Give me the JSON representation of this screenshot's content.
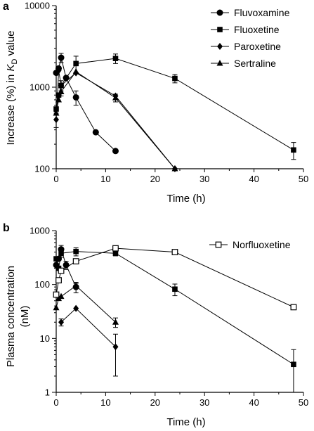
{
  "chart_data": [
    {
      "type": "line",
      "panel_label": "a",
      "title": "",
      "xlabel": "Time (h)",
      "ylabel_prefix": "Increase (%) in ",
      "ylabel_var": "K",
      "ylabel_sub": "D",
      "ylabel_suffix": " value",
      "xlim": [
        0,
        50
      ],
      "ylim": [
        100,
        10000
      ],
      "yscale": "log",
      "x_ticks": [
        0,
        10,
        20,
        30,
        40,
        50
      ],
      "y_ticks": [
        100,
        1000,
        10000
      ],
      "legend_position": "top-right",
      "series": [
        {
          "name": "Fluvoxamine",
          "marker": "circle-filled",
          "x": [
            0,
            0.5,
            1,
            2,
            4,
            8,
            12
          ],
          "y": [
            1500,
            1700,
            2300,
            1300,
            750,
            280,
            165
          ],
          "err": [
            0,
            0,
            300,
            0,
            150,
            0,
            0
          ]
        },
        {
          "name": "Fluoxetine",
          "marker": "square-filled",
          "x": [
            0,
            0.5,
            1,
            4,
            12,
            24,
            48
          ],
          "y": [
            540,
            800,
            1050,
            1950,
            2250,
            1280,
            170
          ],
          "err": [
            0,
            0,
            0,
            450,
            300,
            150,
            40
          ]
        },
        {
          "name": "Paroxetine",
          "marker": "diamond-filled",
          "x": [
            0,
            0.5,
            1,
            4,
            12,
            24
          ],
          "y": [
            400,
            1600,
            1050,
            1500,
            780,
            100
          ],
          "err": [
            80,
            0,
            150,
            0,
            0,
            0
          ]
        },
        {
          "name": "Sertraline",
          "marker": "triangle-filled",
          "x": [
            0,
            0.5,
            1,
            4,
            12,
            24
          ],
          "y": [
            480,
            700,
            880,
            1550,
            740,
            100
          ],
          "err": [
            0,
            0,
            100,
            0,
            80,
            0
          ]
        }
      ]
    },
    {
      "type": "line",
      "panel_label": "b",
      "title": "",
      "xlabel": "Time (h)",
      "ylabel_line1": "Plasma concentration",
      "ylabel_line2": "(nM)",
      "xlim": [
        0,
        50
      ],
      "ylim": [
        1,
        1000
      ],
      "yscale": "log",
      "x_ticks": [
        0,
        10,
        20,
        30,
        40,
        50
      ],
      "y_ticks": [
        1,
        10,
        100,
        1000
      ],
      "legend_position": "top-right",
      "series": [
        {
          "name": "Fluvoxamine",
          "marker": "circle-filled",
          "show_legend": false,
          "x": [
            0,
            0.5,
            1,
            2,
            4
          ],
          "y": [
            230,
            300,
            450,
            230,
            90
          ],
          "err": [
            0,
            0,
            80,
            40,
            20
          ]
        },
        {
          "name": "Fluoxetine",
          "marker": "square-filled",
          "show_legend": false,
          "x": [
            0,
            0.5,
            1,
            4,
            12,
            24,
            48
          ],
          "y": [
            300,
            200,
            380,
            410,
            380,
            82,
            3.3
          ],
          "err": [
            0,
            0,
            60,
            70,
            40,
            20,
            2.9
          ]
        },
        {
          "name": "Paroxetine",
          "marker": "diamond-filled",
          "show_legend": false,
          "x": [
            1,
            4,
            12
          ],
          "y": [
            20,
            36,
            7
          ],
          "err": [
            3,
            0,
            5
          ]
        },
        {
          "name": "Sertraline",
          "marker": "triangle-filled",
          "show_legend": false,
          "x": [
            0,
            0.5,
            1,
            4,
            12
          ],
          "y": [
            37,
            55,
            60,
            95,
            20
          ],
          "err": [
            0,
            0,
            0,
            10,
            4
          ]
        },
        {
          "name": "Norfluoxetine",
          "marker": "square-open",
          "show_legend": true,
          "x": [
            0,
            0.5,
            1,
            4,
            12,
            24,
            48
          ],
          "y": [
            65,
            120,
            180,
            270,
            470,
            400,
            38
          ],
          "err": [
            0,
            0,
            0,
            0,
            0,
            0,
            0
          ]
        }
      ]
    }
  ]
}
